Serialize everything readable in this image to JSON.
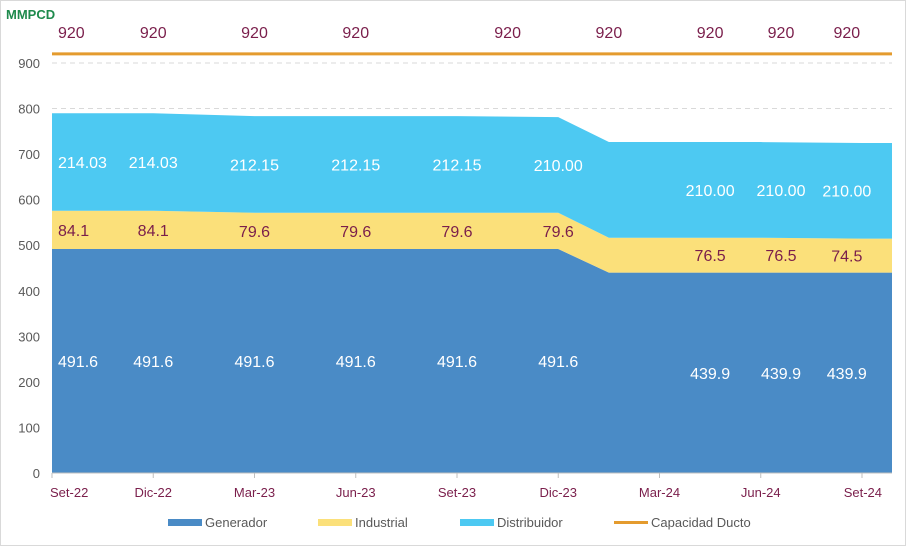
{
  "chart_data": {
    "type": "area",
    "stacked": true,
    "ylabel": "MMPCD",
    "ylim": [
      0,
      900
    ],
    "yticks": [
      0,
      100,
      200,
      300,
      400,
      500,
      600,
      700,
      800,
      900
    ],
    "gridlines": true,
    "x": [
      0,
      1,
      2,
      3,
      4,
      5,
      5.5,
      6,
      7,
      8
    ],
    "categories": [
      "Set-22",
      "Dic-22",
      "Mar-23",
      "Jun-23",
      "Set-23",
      "Dic-23",
      "",
      "Mar-24",
      "Jun-24",
      "Set-24"
    ],
    "tick_labels": [
      "Set-22",
      "Dic-22",
      "Mar-23",
      "Jun-23",
      "Set-23",
      "Dic-23",
      "Mar-24",
      "Jun-24",
      "Set-24"
    ],
    "tick_positions": [
      0,
      1,
      2,
      3,
      4,
      5,
      6,
      7,
      8
    ],
    "series": [
      {
        "name": "Generador",
        "color": "#4a8bc6",
        "values": [
          491.6,
          491.6,
          491.6,
          491.6,
          491.6,
          491.6,
          439.9,
          439.9,
          439.9,
          439.9
        ]
      },
      {
        "name": "Industrial",
        "color": "#fbe07a",
        "values": [
          84.1,
          84.1,
          79.6,
          79.6,
          79.6,
          79.6,
          76.5,
          76.5,
          76.5,
          74.5
        ]
      },
      {
        "name": "Distribuidor",
        "color": "#4dc9f2",
        "values": [
          214.03,
          214.03,
          212.15,
          212.15,
          212.15,
          210.0,
          210.0,
          210.0,
          210.0,
          210.0
        ]
      }
    ],
    "capacity": {
      "name": "Capacidad Ducto",
      "color": "#e49b2e",
      "value": 920
    },
    "data_labels": {
      "generador": [
        {
          "x": 0,
          "text": "491.6"
        },
        {
          "x": 1,
          "text": "491.6"
        },
        {
          "x": 2,
          "text": "491.6"
        },
        {
          "x": 3,
          "text": "491.6"
        },
        {
          "x": 4,
          "text": "491.6"
        },
        {
          "x": 5,
          "text": "491.6"
        },
        {
          "x": 6.5,
          "text": "439.9"
        },
        {
          "x": 7.2,
          "text": "439.9"
        },
        {
          "x": 7.85,
          "text": "439.9"
        }
      ],
      "industrial": [
        {
          "x": 0,
          "text": "84.1"
        },
        {
          "x": 1,
          "text": "84.1"
        },
        {
          "x": 2,
          "text": "79.6"
        },
        {
          "x": 3,
          "text": "79.6"
        },
        {
          "x": 4,
          "text": "79.6"
        },
        {
          "x": 5,
          "text": "79.6"
        },
        {
          "x": 6.5,
          "text": "76.5"
        },
        {
          "x": 7.2,
          "text": "76.5"
        },
        {
          "x": 7.85,
          "text": "74.5"
        }
      ],
      "distribuidor": [
        {
          "x": 0,
          "text": "214.03"
        },
        {
          "x": 1,
          "text": "214.03"
        },
        {
          "x": 2,
          "text": "212.15"
        },
        {
          "x": 3,
          "text": "212.15"
        },
        {
          "x": 4,
          "text": "212.15"
        },
        {
          "x": 5,
          "text": "210.00"
        },
        {
          "x": 6.5,
          "text": "210.00"
        },
        {
          "x": 7.2,
          "text": "210.00"
        },
        {
          "x": 7.85,
          "text": "210.00"
        }
      ],
      "capacity": [
        {
          "x": 0,
          "text": "920"
        },
        {
          "x": 1,
          "text": "920"
        },
        {
          "x": 2,
          "text": "920"
        },
        {
          "x": 3,
          "text": "920"
        },
        {
          "x": 4.5,
          "text": "920"
        },
        {
          "x": 5.5,
          "text": "920"
        },
        {
          "x": 6.5,
          "text": "920"
        },
        {
          "x": 7.2,
          "text": "920"
        },
        {
          "x": 7.85,
          "text": "920"
        }
      ]
    },
    "legend": [
      "Generador",
      "Industrial",
      "Distribuidor",
      "Capacidad Ducto"
    ],
    "legend_position": "bottom"
  }
}
